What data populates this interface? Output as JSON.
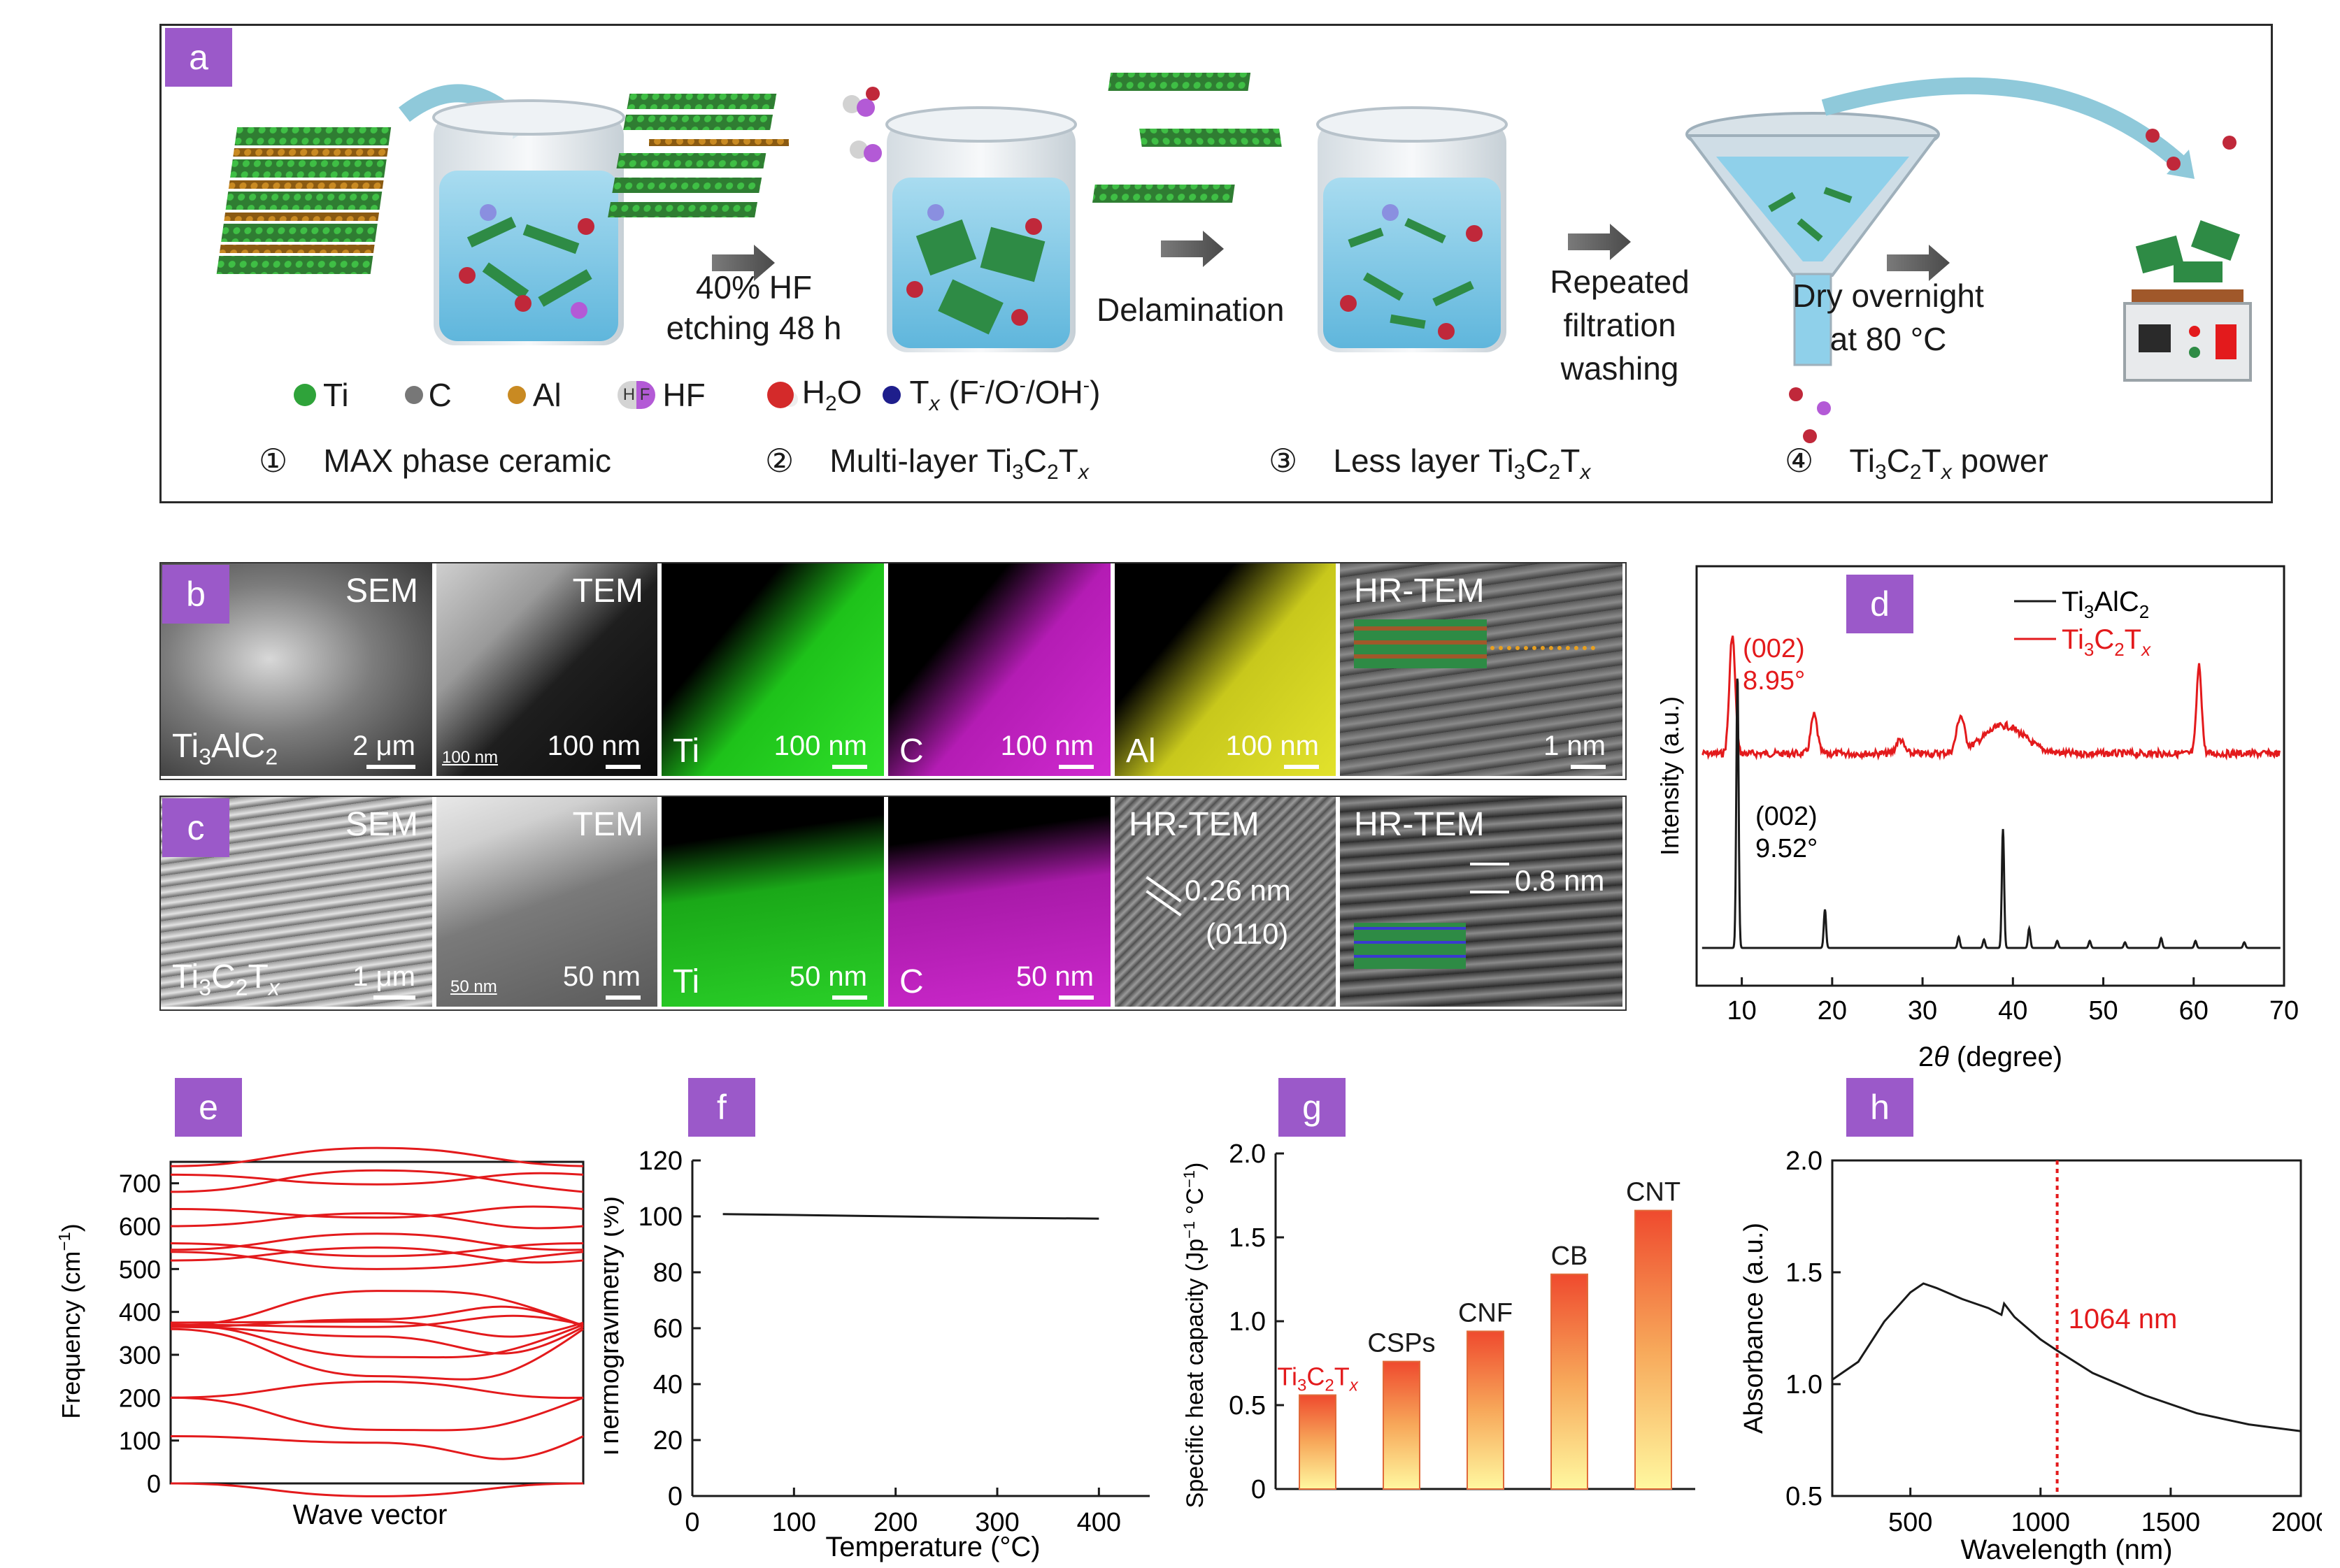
{
  "panel_a": {
    "tag": "a",
    "step1_reagent_l1": "40% HF",
    "step1_reagent_l2": "etching 48 h",
    "step2_label": "Delamination",
    "step3_l1": "Repeated",
    "step3_l2": "filtration",
    "step3_l3": "washing",
    "step4_l1": "Dry overnight",
    "step4_l2": "at 80 °C",
    "legend": {
      "ti": "Ti",
      "c": "C",
      "al": "Al",
      "hf_glyph": "H F",
      "hf": "HF",
      "h2o_h": "H",
      "h2o_sub": "2",
      "h2o_o": "O",
      "tx_t": "T",
      "tx_x": "x",
      "tx_rest": " (F",
      "tx_sup1": "-",
      "tx_mid1": "/O",
      "tx_sup2": "-",
      "tx_mid2": "/OH",
      "tx_sup3": "-",
      "tx_end": ")"
    },
    "stages": [
      {
        "num": "①",
        "text": "MAX phase ceramic"
      },
      {
        "num": "②",
        "pre": "Multi-layer Ti",
        "s1": "3",
        "m": "C",
        "s2": "2",
        "t": "T",
        "x": "x",
        "post": ""
      },
      {
        "num": "③",
        "pre": "Less layer Ti",
        "s1": "3",
        "m": "C",
        "s2": "2",
        "t": "T",
        "x": "x",
        "post": ""
      },
      {
        "num": "④",
        "pre": "Ti",
        "s1": "3",
        "m": "C",
        "s2": "2",
        "t": "T",
        "x": "x",
        "post": " power"
      }
    ]
  },
  "panel_b": {
    "tag": "b",
    "sem": "SEM",
    "tem": "TEM",
    "hrtem": "HR-TEM",
    "sample_pre": "Ti",
    "sample_s1": "3",
    "sample_mid": "AlC",
    "sample_s2": "2",
    "sb_sem": "2 μm",
    "sb_tem_small": "100 nm",
    "sb_tem": "100 nm",
    "map_ti": "Ti",
    "map_c": "C",
    "map_al": "Al",
    "sb_ti": "100 nm",
    "sb_c": "100 nm",
    "sb_al": "100 nm",
    "sb_hr": "1 nm"
  },
  "panel_c": {
    "tag": "c",
    "sem": "SEM",
    "tem": "TEM",
    "hrtem1": "HR-TEM",
    "hrtem2": "HR-TEM",
    "sample_pre": "Ti",
    "sample_s1": "3",
    "sample_mid": "C",
    "sample_s2": "2",
    "sample_t": "T",
    "sample_x": "x",
    "sb_sem": "1 μm",
    "sb_tem_small": "50 nm",
    "sb_tem": "50 nm",
    "map_ti": "Ti",
    "map_c": "C",
    "sb_ti": "50 nm",
    "sb_c": "50 nm",
    "d_spacing": "0.26 nm",
    "plane": "(0110)",
    "interlayer": "0.8 nm"
  },
  "chart_data": [
    {
      "panel": "d",
      "type": "line",
      "xlabel_pre": "2",
      "xlabel_theta": "θ",
      "xlabel_post": " (degree)",
      "ylabel": "Intensity (a.u.)",
      "xlim": [
        5,
        70
      ],
      "xticks": [
        10,
        20,
        30,
        40,
        50,
        60,
        70
      ],
      "legend_placement": "top-right",
      "series": [
        {
          "name_pre": "Ti",
          "name_s1": "3",
          "name_mid": "AlC",
          "name_s2": "2",
          "color": "#1a1a1a",
          "peaks_2theta": [
            9.52,
            19.2,
            34.0,
            36.8,
            38.9,
            41.8,
            44.9,
            48.5,
            52.4,
            56.4,
            60.2,
            65.6
          ]
        },
        {
          "name_pre": "Ti",
          "name_s1": "3",
          "name_mid": "C",
          "name_s2": "2",
          "name_t": "T",
          "name_x": "x",
          "color": "#e31a1c",
          "peaks_2theta": [
            8.95,
            18.0,
            27.5,
            34.2,
            36.5,
            39.0,
            41.5,
            43.5,
            60.6
          ]
        }
      ],
      "annotations": [
        {
          "label": "(002)",
          "value": "8.95°",
          "color": "#e31a1c"
        },
        {
          "label": "(002)",
          "value": "9.52°",
          "color": "#1a1a1a"
        }
      ]
    },
    {
      "panel": "e",
      "type": "line",
      "xlabel": "Wave vector",
      "ylabel_pre": "Frequency (cm",
      "ylabel_sup": "−1",
      "ylabel_post": ")",
      "ylim": [
        0,
        750
      ],
      "yticks": [
        0,
        100,
        200,
        300,
        400,
        500,
        600,
        700
      ],
      "color": "#e31a1c",
      "band_endpoints_cm1": [
        [
          0,
          0
        ],
        [
          110,
          0
        ],
        [
          200,
          110
        ],
        [
          200,
          195
        ],
        [
          360,
          200
        ],
        [
          365,
          240
        ],
        [
          370,
          280
        ],
        [
          375,
          300
        ],
        [
          370,
          420
        ],
        [
          368,
          450
        ],
        [
          365,
          460
        ],
        [
          520,
          500
        ],
        [
          540,
          520
        ],
        [
          545,
          540
        ],
        [
          560,
          560
        ],
        [
          600,
          580
        ],
        [
          640,
          660
        ],
        [
          680,
          700
        ],
        [
          720,
          735
        ],
        [
          740,
          745
        ]
      ]
    },
    {
      "panel": "f",
      "type": "line",
      "xlabel": "Temperature (°C)",
      "ylabel": "Thermogravimetry (%)",
      "xlim": [
        0,
        450
      ],
      "ylim": [
        0,
        120
      ],
      "xticks": [
        0,
        100,
        200,
        300,
        400
      ],
      "yticks": [
        0,
        20,
        40,
        60,
        80,
        100,
        120
      ],
      "x": [
        30,
        100,
        200,
        300,
        400
      ],
      "y": [
        100.8,
        100.5,
        100.0,
        99.5,
        99.2
      ]
    },
    {
      "panel": "g",
      "type": "bar",
      "ylabel_pre": "Specific heat capacity (Jp",
      "ylabel_sup1": "−1",
      "ylabel_mid": " °C",
      "ylabel_sup2": "−1",
      "ylabel_post": ")",
      "ylim": [
        0,
        2.0
      ],
      "yticks": [
        "0",
        "0.5",
        "1.0",
        "1.5",
        "2.0"
      ],
      "categories": [
        "Ti3C2Tx",
        "CSPs",
        "CNF",
        "CB",
        "CNT"
      ],
      "values": [
        0.56,
        0.76,
        0.94,
        1.28,
        1.66
      ],
      "label_colors": [
        "#e31a1c",
        "#1a1a1a",
        "#1a1a1a",
        "#1a1a1a",
        "#1a1a1a"
      ],
      "first_label": {
        "pre": "Ti",
        "s1": "3",
        "mid": "C",
        "s2": "2",
        "t": "T",
        "x": "x"
      },
      "labels_rest": [
        "CSPs",
        "CNF",
        "CB",
        "CNT"
      ]
    },
    {
      "panel": "h",
      "type": "line",
      "xlabel": "Wavelength (nm)",
      "ylabel": "Absorbance (a.u.)",
      "xlim": [
        200,
        2000
      ],
      "ylim": [
        0.5,
        2.0
      ],
      "xticks": [
        500,
        1000,
        1500,
        2000
      ],
      "yticks": [
        "0.5",
        "1.0",
        "1.5",
        "2.0"
      ],
      "x": [
        200,
        300,
        400,
        500,
        550,
        600,
        700,
        800,
        850,
        860,
        900,
        1000,
        1064,
        1200,
        1400,
        1600,
        1800,
        2000
      ],
      "y": [
        1.02,
        1.1,
        1.28,
        1.41,
        1.45,
        1.43,
        1.38,
        1.34,
        1.31,
        1.36,
        1.3,
        1.2,
        1.15,
        1.05,
        0.95,
        0.87,
        0.82,
        0.79
      ],
      "marker_nm": 1064,
      "marker_label": "1064 nm",
      "marker_color": "#e31a1c"
    }
  ]
}
